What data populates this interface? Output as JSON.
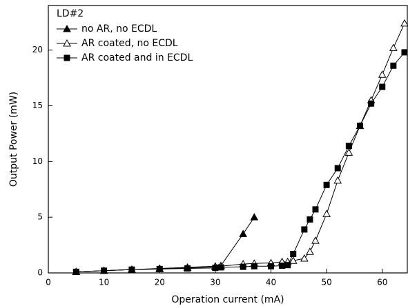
{
  "chart_data": {
    "type": "line",
    "xlabel": "Operation current (mA)",
    "ylabel": "Output Power (mW)",
    "legend_title": "LD#2",
    "legend": "upper left",
    "xlim": [
      0,
      64.5
    ],
    "xticks": [
      0,
      10,
      20,
      30,
      40,
      50,
      60
    ],
    "ylim": [
      0,
      24
    ],
    "yticks": [
      0,
      5,
      10,
      15,
      20
    ],
    "series": [
      {
        "name": "no AR, no ECDL",
        "color": "#000000",
        "marker": "filled-triangle",
        "x": [
          5,
          10,
          15,
          20,
          25,
          30,
          31,
          35,
          37
        ],
        "values": [
          0.1,
          0.2,
          0.3,
          0.4,
          0.5,
          0.6,
          0.65,
          3.5,
          5.0
        ]
      },
      {
        "name": "AR coated, no ECDL",
        "color": "#000000",
        "marker": "open-triangle",
        "x": [
          5,
          10,
          15,
          20,
          25,
          30,
          31,
          35,
          37,
          40,
          42,
          43,
          44,
          46,
          47,
          48,
          50,
          52,
          54,
          56,
          58,
          60,
          62,
          64
        ],
        "values": [
          0.1,
          0.2,
          0.3,
          0.35,
          0.45,
          0.55,
          0.6,
          0.8,
          0.85,
          0.9,
          1.0,
          1.0,
          1.1,
          1.3,
          1.9,
          2.9,
          5.3,
          8.3,
          10.8,
          13.2,
          15.5,
          17.8,
          20.2,
          22.4
        ]
      },
      {
        "name": "AR coated and in ECDL",
        "color": "#000000",
        "marker": "filled-square",
        "x": [
          5,
          10,
          15,
          20,
          25,
          30,
          31,
          35,
          37,
          40,
          42,
          43,
          44,
          46,
          47,
          48,
          50,
          52,
          54,
          56,
          58,
          60,
          62,
          64
        ],
        "values": [
          0.1,
          0.2,
          0.3,
          0.35,
          0.4,
          0.45,
          0.5,
          0.55,
          0.6,
          0.6,
          0.65,
          0.7,
          1.7,
          3.9,
          4.8,
          5.7,
          7.9,
          9.4,
          11.4,
          13.2,
          15.2,
          16.7,
          18.6,
          19.8
        ]
      }
    ]
  }
}
